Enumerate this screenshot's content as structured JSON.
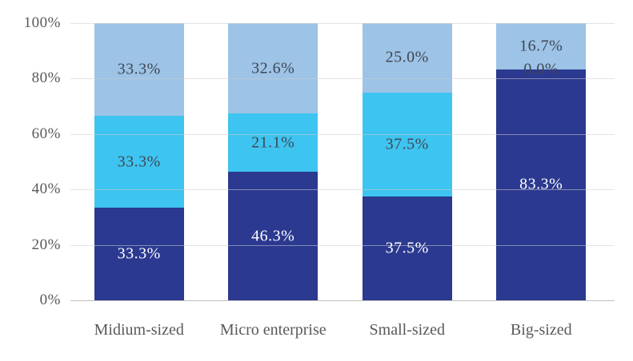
{
  "chart_data": {
    "type": "bar",
    "variant": "stacked-100-percent",
    "title": "",
    "categories": [
      "Midium-sized",
      "Micro enterprise",
      "Small-sized",
      "Big-sized"
    ],
    "series": [
      {
        "name": "bottom-segment",
        "color": "#2B3990",
        "label_color": "#FFFFFF",
        "values": [
          33.3,
          46.3,
          37.5,
          83.3
        ],
        "value_labels": [
          "33.3%",
          "46.3%",
          "37.5%",
          "83.3%"
        ]
      },
      {
        "name": "middle-segment",
        "color": "#3EC4F0",
        "label_color": "#404654",
        "values": [
          33.3,
          21.1,
          37.5,
          0.0
        ],
        "value_labels": [
          "33.3%",
          "21.1%",
          "37.5%",
          "0.0%"
        ]
      },
      {
        "name": "top-segment",
        "color": "#9DC3E6",
        "label_color": "#404654",
        "values": [
          33.3,
          32.6,
          25.0,
          16.7
        ],
        "value_labels": [
          "33.3%",
          "32.6%",
          "25.0%",
          "16.7%"
        ]
      }
    ],
    "y_axis": {
      "min": 0,
      "max": 100,
      "tick_step": 20,
      "tick_labels": [
        "0%",
        "20%",
        "40%",
        "60%",
        "80%",
        "100%"
      ]
    },
    "x_axis": {
      "labels": [
        "Midium-sized",
        "Micro enterprise",
        "Small-sized",
        "Big-sized"
      ]
    },
    "grid": true,
    "legend": "none"
  },
  "colors": {
    "background": "#FFFFFF",
    "gridline": "#D9D9D9",
    "axis_line": "#BFBFBF",
    "axis_text": "#595959"
  }
}
